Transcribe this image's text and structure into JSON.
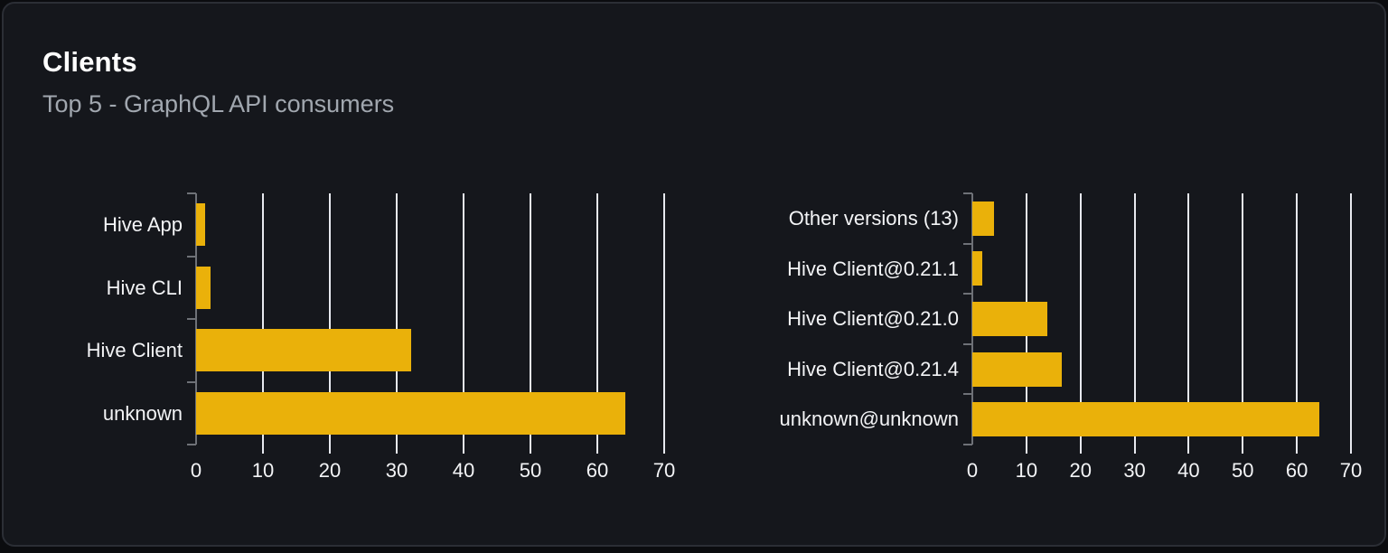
{
  "panel": {
    "title": "Clients",
    "subtitle": "Top 5 - GraphQL API consumers"
  },
  "colors": {
    "page_background": "#0b0c0f",
    "card_background": "#15171c",
    "card_border": "#2b2e35",
    "title": "#ffffff",
    "subtitle": "#a1a7af",
    "axis_label": "#f3f4f6",
    "gridline": "#e7e9ef",
    "axis": "#6e7177",
    "bar": "#eab10a"
  },
  "chart_data": [
    {
      "type": "bar",
      "orientation": "horizontal",
      "categories": [
        "Hive App",
        "Hive CLI",
        "Hive Client",
        "unknown"
      ],
      "values": [
        1.4,
        2.1,
        32.2,
        64.2
      ],
      "xlim": [
        0,
        70
      ],
      "x_ticks": [
        0,
        10,
        20,
        30,
        40,
        50,
        60,
        70
      ],
      "grid": true,
      "legend": false
    },
    {
      "type": "bar",
      "orientation": "horizontal",
      "categories": [
        "Other versions (13)",
        "Hive Client@0.21.1",
        "Hive Client@0.21.0",
        "Hive Client@0.21.4",
        "unknown@unknown"
      ],
      "values": [
        4.0,
        1.8,
        13.9,
        16.5,
        64.2
      ],
      "xlim": [
        0,
        70
      ],
      "x_ticks": [
        0,
        10,
        20,
        30,
        40,
        50,
        60,
        70
      ],
      "grid": true,
      "legend": false
    }
  ]
}
